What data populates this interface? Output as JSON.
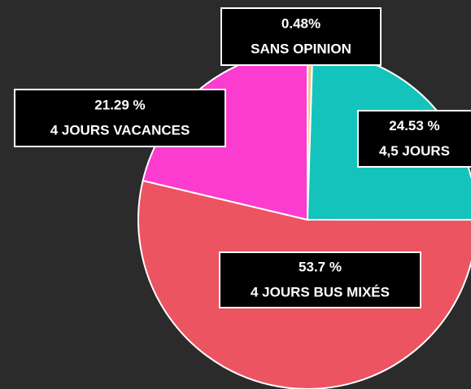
{
  "chart_data": {
    "type": "pie",
    "categories": [
      "SANS OPINION",
      "4,5 JOURS",
      "4 JOURS BUS MIXÉS",
      "4 JOURS VACANCES"
    ],
    "values": [
      0.48,
      24.53,
      53.7,
      21.29
    ],
    "value_labels": [
      "0.48%",
      "24.53  %",
      "53.7 %",
      "21.29 %"
    ],
    "colors": [
      "#f2c28e",
      "#14c4bc",
      "#ec5461",
      "#fb3ccf"
    ]
  }
}
